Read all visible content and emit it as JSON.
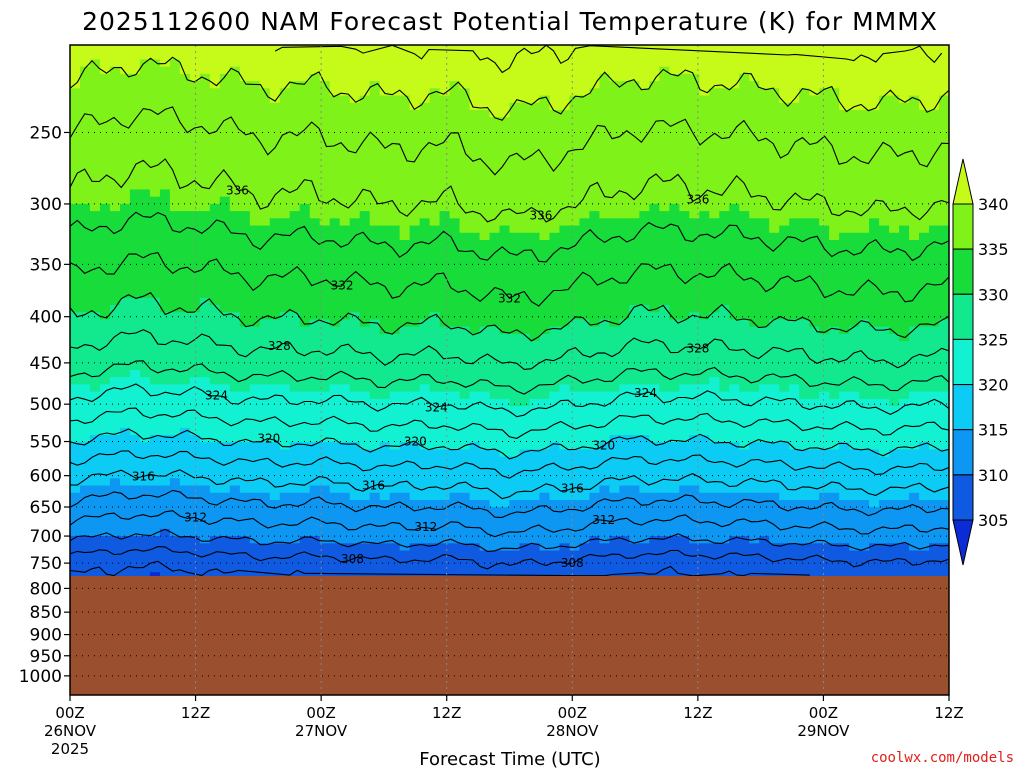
{
  "chart_data": {
    "type": "heatmap",
    "title": "2025112600 NAM Forecast Potential Temperature (K) for MMMX",
    "xlabel": "Forecast Time (UTC)",
    "ylabel": "",
    "y_axis": {
      "scale": "log-pressure",
      "inverted": true,
      "range_hpa": [
        1050,
        200
      ],
      "ticks": [
        250,
        300,
        350,
        400,
        450,
        500,
        550,
        600,
        650,
        700,
        750,
        800,
        850,
        900,
        950,
        1000
      ],
      "tick_labels": [
        "250",
        "300",
        "350",
        "400",
        "450",
        "500",
        "550",
        "600",
        "650",
        "700",
        "750",
        "800",
        "850",
        "900",
        "950",
        "1000"
      ]
    },
    "x_axis": {
      "range_hours": [
        0,
        84
      ],
      "ticks_hours": [
        0,
        12,
        24,
        36,
        48,
        60,
        72,
        84
      ],
      "tick_labels": [
        {
          "time": "00Z",
          "date": "26NOV",
          "year": "2025"
        },
        {
          "time": "12Z",
          "date": "",
          "year": ""
        },
        {
          "time": "00Z",
          "date": "27NOV",
          "year": ""
        },
        {
          "time": "12Z",
          "date": "",
          "year": ""
        },
        {
          "time": "00Z",
          "date": "28NOV",
          "year": ""
        },
        {
          "time": "12Z",
          "date": "",
          "year": ""
        },
        {
          "time": "00Z",
          "date": "29NOV",
          "year": ""
        },
        {
          "time": "12Z",
          "date": "",
          "year": ""
        }
      ]
    },
    "grid": true,
    "surface_pressure_hpa": 775,
    "surface_color": "#9a4f2e",
    "colorbar": {
      "placement": "right",
      "levels": [
        305,
        310,
        315,
        320,
        325,
        330,
        335,
        340
      ],
      "tick_labels": [
        "305",
        "310",
        "315",
        "320",
        "325",
        "330",
        "335",
        "340"
      ],
      "colors": [
        "#0a2bd6",
        "#0f5ae0",
        "#0d97f2",
        "#0ccbf4",
        "#12f2d2",
        "#12e98f",
        "#18dc3a",
        "#7ff21a",
        "#c6fa18"
      ],
      "extend": "both"
    },
    "contour_interval_K": 2,
    "contour_labels": [
      "336",
      "336",
      "336",
      "332",
      "332",
      "328",
      "328",
      "324",
      "324",
      "324",
      "320",
      "320",
      "320",
      "316",
      "316",
      "316",
      "312",
      "312",
      "312",
      "308",
      "308"
    ],
    "profile": {
      "pressure_hpa": [
        775,
        750,
        700,
        650,
        600,
        550,
        500,
        450,
        400,
        350,
        300,
        250,
        200
      ],
      "theta_K": [
        306,
        307,
        310.5,
        313.5,
        316.5,
        320,
        323.5,
        327,
        330,
        332.5,
        335.5,
        338,
        341.5
      ]
    },
    "time_anomaly_K": {
      "hours": [
        0,
        6,
        12,
        18,
        24,
        30,
        36,
        42,
        48,
        54,
        60,
        66,
        72,
        78,
        84
      ],
      "values": [
        0,
        -0.8,
        -0.4,
        0.2,
        0.1,
        0.6,
        0.4,
        1.2,
        0.6,
        -0.2,
        -0.1,
        0.2,
        0.6,
        0.9,
        0.5
      ]
    }
  },
  "credit": "coolwx.com/models"
}
